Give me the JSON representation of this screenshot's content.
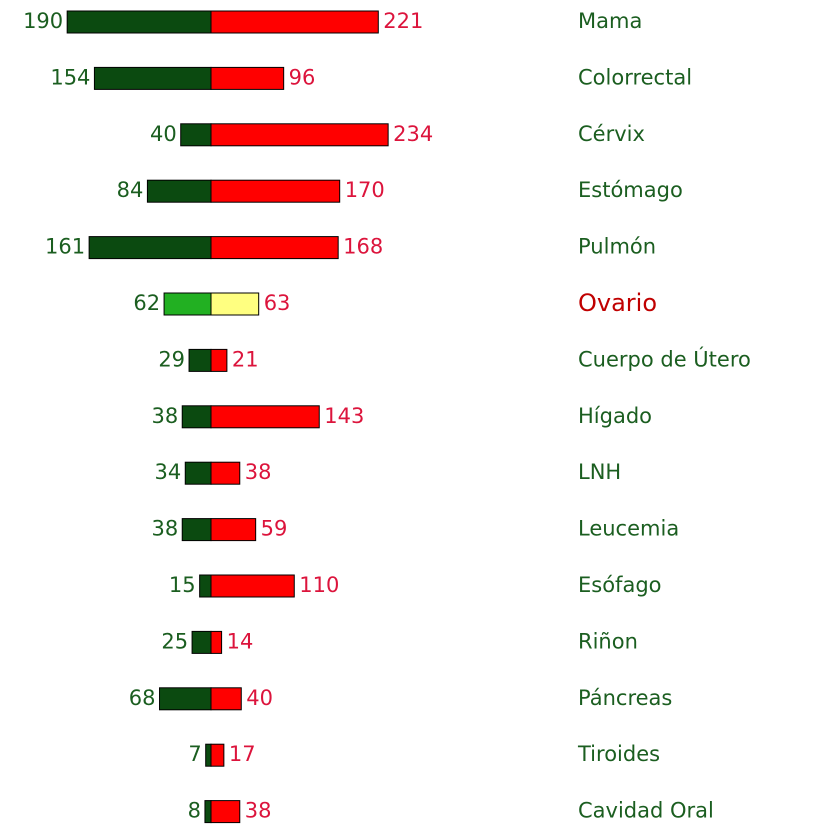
{
  "chart_data": {
    "type": "butterfly",
    "categories": [
      "Mama",
      "Colorrectal",
      "Cérvix",
      "Estómago",
      "Pulmón",
      "Ovario",
      "Cuerpo de Útero",
      "Hígado",
      "LNH",
      "Leucemia",
      "Esófago",
      "Riñon",
      "Páncreas",
      "Tiroides",
      "Cavidad Oral"
    ],
    "series": [
      {
        "color": "#0b4a10",
        "label_color": "#1b5e20",
        "values": [
          190,
          154,
          40,
          84,
          161,
          62,
          29,
          38,
          34,
          38,
          15,
          25,
          68,
          7,
          8
        ]
      },
      {
        "color": "#ff0000",
        "label_color": "#dc143c",
        "values": [
          221,
          96,
          234,
          170,
          168,
          63,
          21,
          143,
          38,
          59,
          110,
          14,
          40,
          17,
          38
        ]
      }
    ],
    "category_color": "#1b5e20",
    "highlight": {
      "index": 5,
      "colors": [
        "#22b022",
        "#ffff80"
      ],
      "label_color": "#c00000"
    }
  }
}
